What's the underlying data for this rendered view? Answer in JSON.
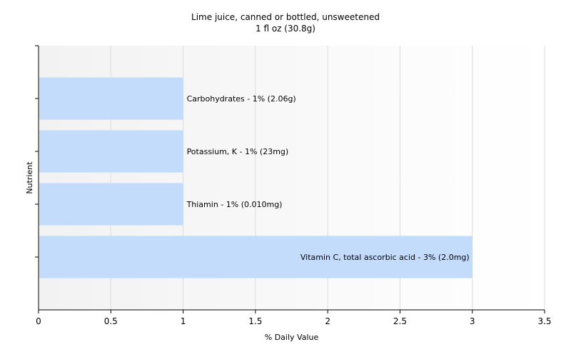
{
  "chart_data": {
    "type": "bar",
    "orientation": "horizontal",
    "title": "Lime juice, canned or bottled, unsweetened",
    "subtitle": "1 fl oz (30.8g)",
    "xlabel": "% Daily Value",
    "ylabel": "Nutrient",
    "xlim": [
      0,
      3.5
    ],
    "xticks": [
      "0",
      "0.5",
      "1",
      "1.5",
      "2",
      "2.5",
      "3",
      "3.5"
    ],
    "categories": [
      "Carbohydrates",
      "Potassium, K",
      "Thiamin",
      "Vitamin C, total ascorbic acid"
    ],
    "values": [
      1,
      1,
      1,
      3
    ],
    "labels": [
      "Carbohydrates - 1% (2.06g)",
      "Potassium, K - 1% (23mg)",
      "Thiamin - 1% (0.010mg)",
      "Vitamin C, total ascorbic acid - 3% (2.0mg)"
    ],
    "bar_color": "#c4dcfc",
    "grid": true,
    "legend": "none"
  }
}
